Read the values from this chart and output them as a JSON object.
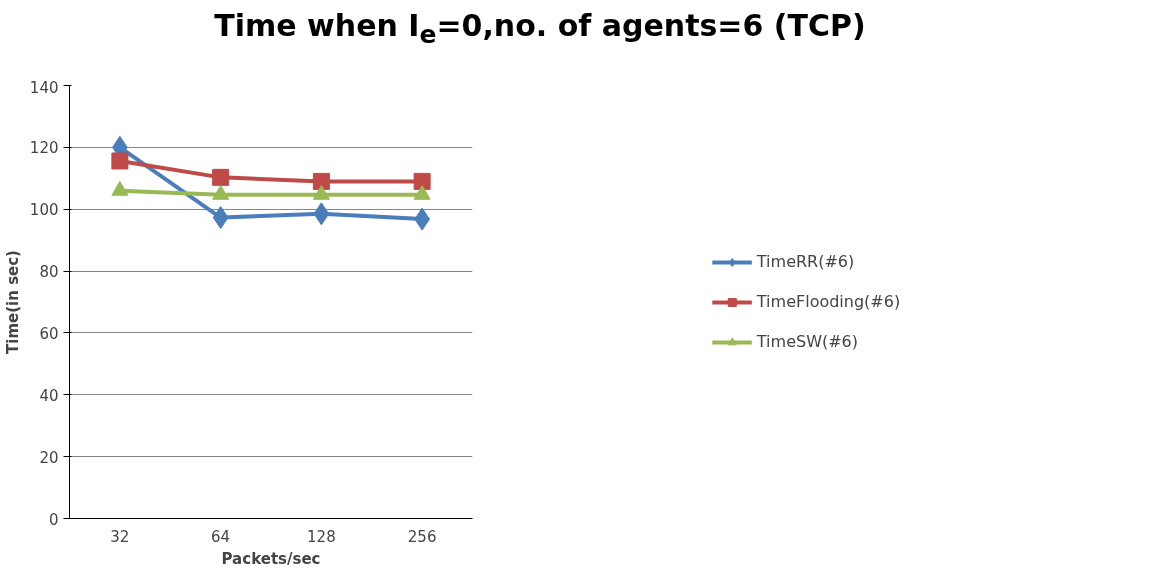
{
  "chart_data": {
    "type": "line",
    "title": "Time when I$_{e}$=0,no. of agents=6 (TCP)",
    "xlabel": "Packets/sec",
    "ylabel": "Time(in sec)",
    "categories": [
      "32",
      "64",
      "128",
      "256"
    ],
    "series": [
      {
        "name": "TimeRR(#6)",
        "color": "#4a7ebb",
        "marker": "diamond",
        "values": [
          120,
          97.3,
          98.5,
          96.8
        ]
      },
      {
        "name": "TimeFlooding(#6)",
        "color": "#be4b48",
        "marker": "square",
        "values": [
          115.6,
          110.3,
          109,
          109
        ]
      },
      {
        "name": "TimeSW(#6)",
        "color": "#98b954",
        "marker": "triangle",
        "values": [
          106,
          104.7,
          104.7,
          104.7
        ]
      }
    ],
    "ylim": [
      0,
      140
    ],
    "yticks": [
      0,
      20,
      40,
      60,
      80,
      100,
      120,
      140
    ],
    "grid": "y",
    "legend": "right",
    "line_style": "solid"
  }
}
